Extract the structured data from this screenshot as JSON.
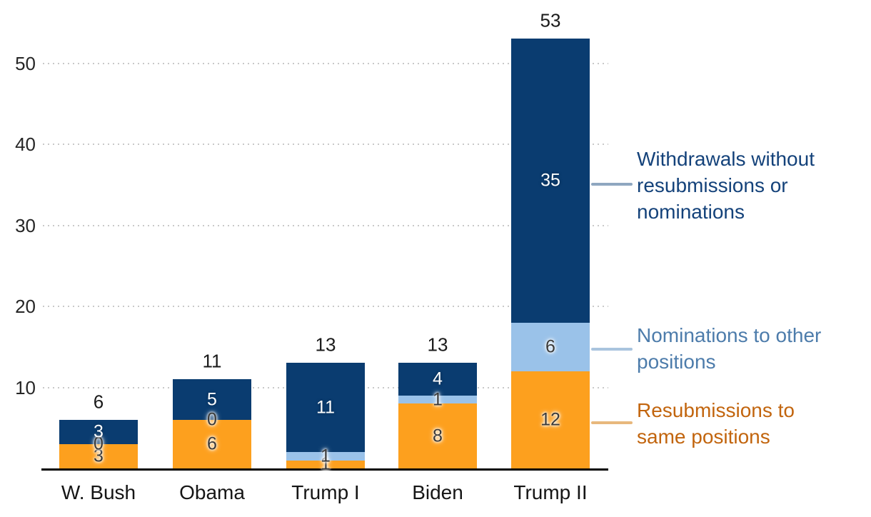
{
  "chart_data": {
    "type": "bar",
    "stacked": true,
    "title": "",
    "categories": [
      "W. Bush",
      "Obama",
      "Trump I",
      "Biden",
      "Trump II"
    ],
    "series": [
      {
        "key": "resubmissions",
        "name": "Resubmissions to same positions",
        "color": "#fda01e",
        "label_style": "dark",
        "values": [
          3,
          6,
          1,
          8,
          12
        ]
      },
      {
        "key": "nominations",
        "name": "Nominations to other positions",
        "color": "#9ac2e9",
        "label_style": "dark",
        "values": [
          0,
          0,
          1,
          1,
          6
        ]
      },
      {
        "key": "withdrawals",
        "name": "Withdrawals without resubmissions or nominations",
        "color": "#0a3c70",
        "label_style": "light",
        "values": [
          3,
          5,
          11,
          4,
          35
        ]
      }
    ],
    "totals": [
      6,
      11,
      13,
      13,
      53
    ],
    "yticks": [
      10,
      20,
      30,
      40,
      50
    ],
    "ylim": [
      0,
      53
    ],
    "grid": "horizontal-dotted",
    "legend_position": "right-annotations",
    "xlabel": "",
    "ylabel": ""
  },
  "annotations": [
    {
      "series": "withdrawals",
      "lines": [
        "Withdrawals without",
        "resubmissions or",
        "nominations"
      ],
      "text_color": "#14427a",
      "line_color": "#8fa7c0"
    },
    {
      "series": "nominations",
      "lines": [
        "Nominations to other",
        "positions"
      ],
      "text_color": "#4d7cab",
      "line_color": "#a9c4de"
    },
    {
      "series": "resubmissions",
      "lines": [
        "Resubmissions to",
        "same positions"
      ],
      "text_color": "#c2650e",
      "line_color": "#e8b87c"
    }
  ],
  "axis_colors": {
    "tick_label": "#262626",
    "axis_line": "#000000",
    "grid": "#c9c9c9"
  }
}
